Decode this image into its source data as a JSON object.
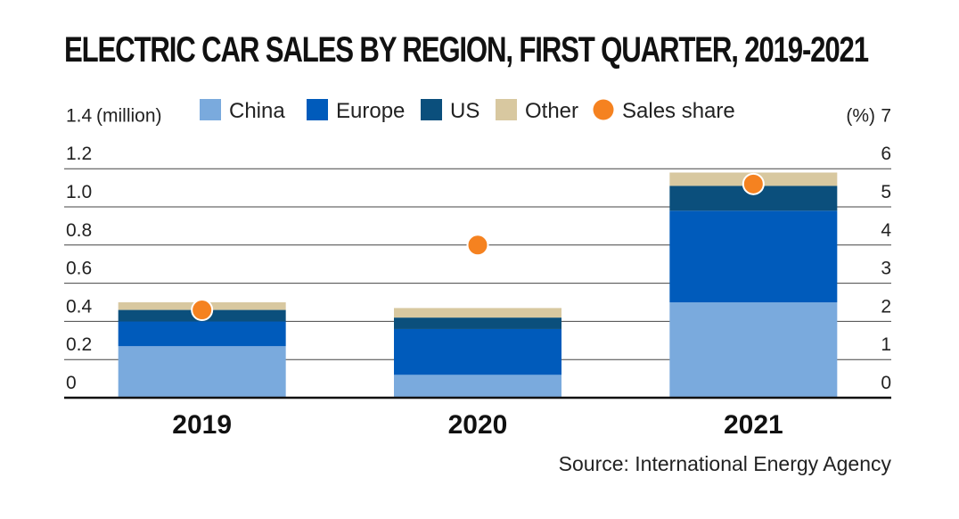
{
  "chart_data": {
    "type": "bar",
    "stacked": true,
    "title": "ELECTRIC CAR SALES BY REGION, FIRST QUARTER, 2019-2021",
    "y_left_unit": "(million)",
    "y_right_unit": "(%)",
    "ylim": [
      0,
      1.4
    ],
    "y2lim": [
      0,
      7
    ],
    "y_ticks": [
      "0",
      "0.2",
      "0.4",
      "0.6",
      "0.8",
      "1.0",
      "1.2",
      "1.4"
    ],
    "y2_ticks": [
      "0",
      "1",
      "2",
      "3",
      "4",
      "5",
      "6",
      "7"
    ],
    "categories": [
      "2019",
      "2020",
      "2021"
    ],
    "series": [
      {
        "name": "China",
        "color": "#7aaadd",
        "values": [
          0.27,
          0.12,
          0.5
        ]
      },
      {
        "name": "Europe",
        "color": "#005bbb",
        "values": [
          0.13,
          0.24,
          0.48
        ]
      },
      {
        "name": "US",
        "color": "#0b4f7c",
        "values": [
          0.06,
          0.06,
          0.13
        ]
      },
      {
        "name": "Other",
        "color": "#d8c8a0",
        "values": [
          0.04,
          0.05,
          0.07
        ]
      }
    ],
    "line_series": {
      "name": "Sales share",
      "color": "#f58220",
      "axis": "right",
      "values": [
        2.3,
        4.0,
        5.6
      ]
    },
    "grid": true,
    "legend_position": "top",
    "source": "Source: International Energy Agency"
  }
}
